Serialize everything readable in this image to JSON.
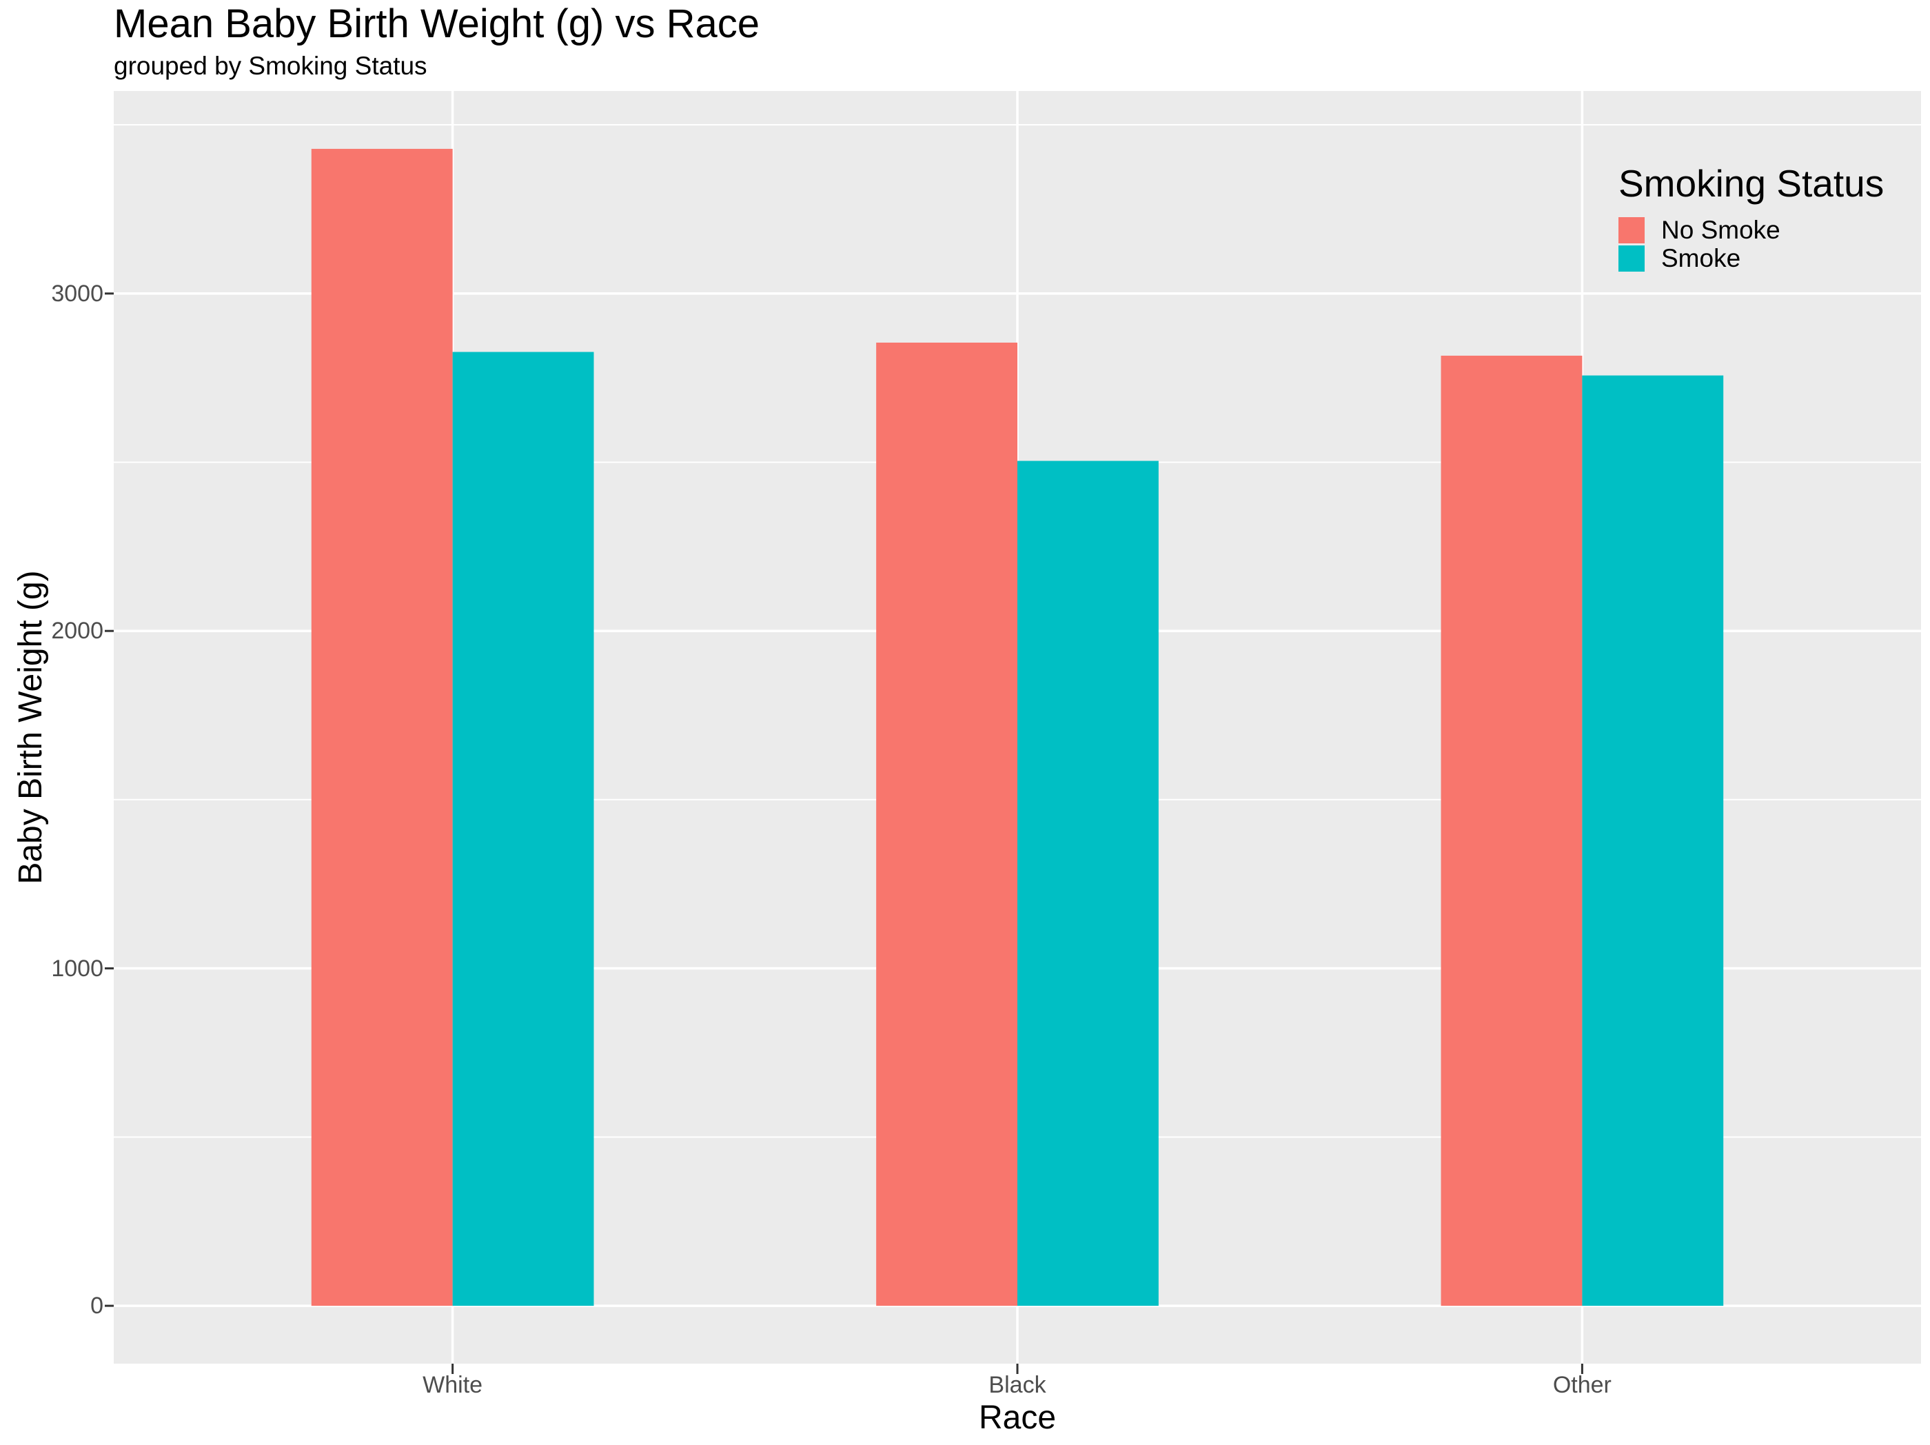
{
  "chart_data": {
    "type": "bar",
    "title": "Mean Baby Birth Weight (g) vs Race",
    "subtitle": "grouped by Smoking Status",
    "xlabel": "Race",
    "ylabel": "Baby Birth Weight (g)",
    "categories": [
      "White",
      "Black",
      "Other"
    ],
    "series": [
      {
        "name": "No Smoke",
        "color": "#F8766D",
        "values": [
          3428.75,
          2854.5,
          2815.78
        ]
      },
      {
        "name": "Smoke",
        "color": "#00BFC4",
        "values": [
          2826.85,
          2504.0,
          2757.17
        ]
      }
    ],
    "legend": {
      "title": "Smoking Status",
      "position": "inside-top-right",
      "entries": [
        "No Smoke",
        "Smoke"
      ]
    },
    "y_axis": {
      "ticks": [
        0,
        1000,
        2000,
        3000
      ],
      "minor_ticks": [
        500,
        1500,
        2500,
        3500
      ],
      "range": [
        -171.44,
        3600.19
      ]
    },
    "grid": true,
    "style": {
      "background": "#FFFFFF",
      "panel_bg": "#EBEBEB",
      "grid_color": "#FFFFFF",
      "tick_label_color": "#4D4D4D",
      "axis_tick_color": "#333333",
      "text_color": "#000000"
    }
  }
}
